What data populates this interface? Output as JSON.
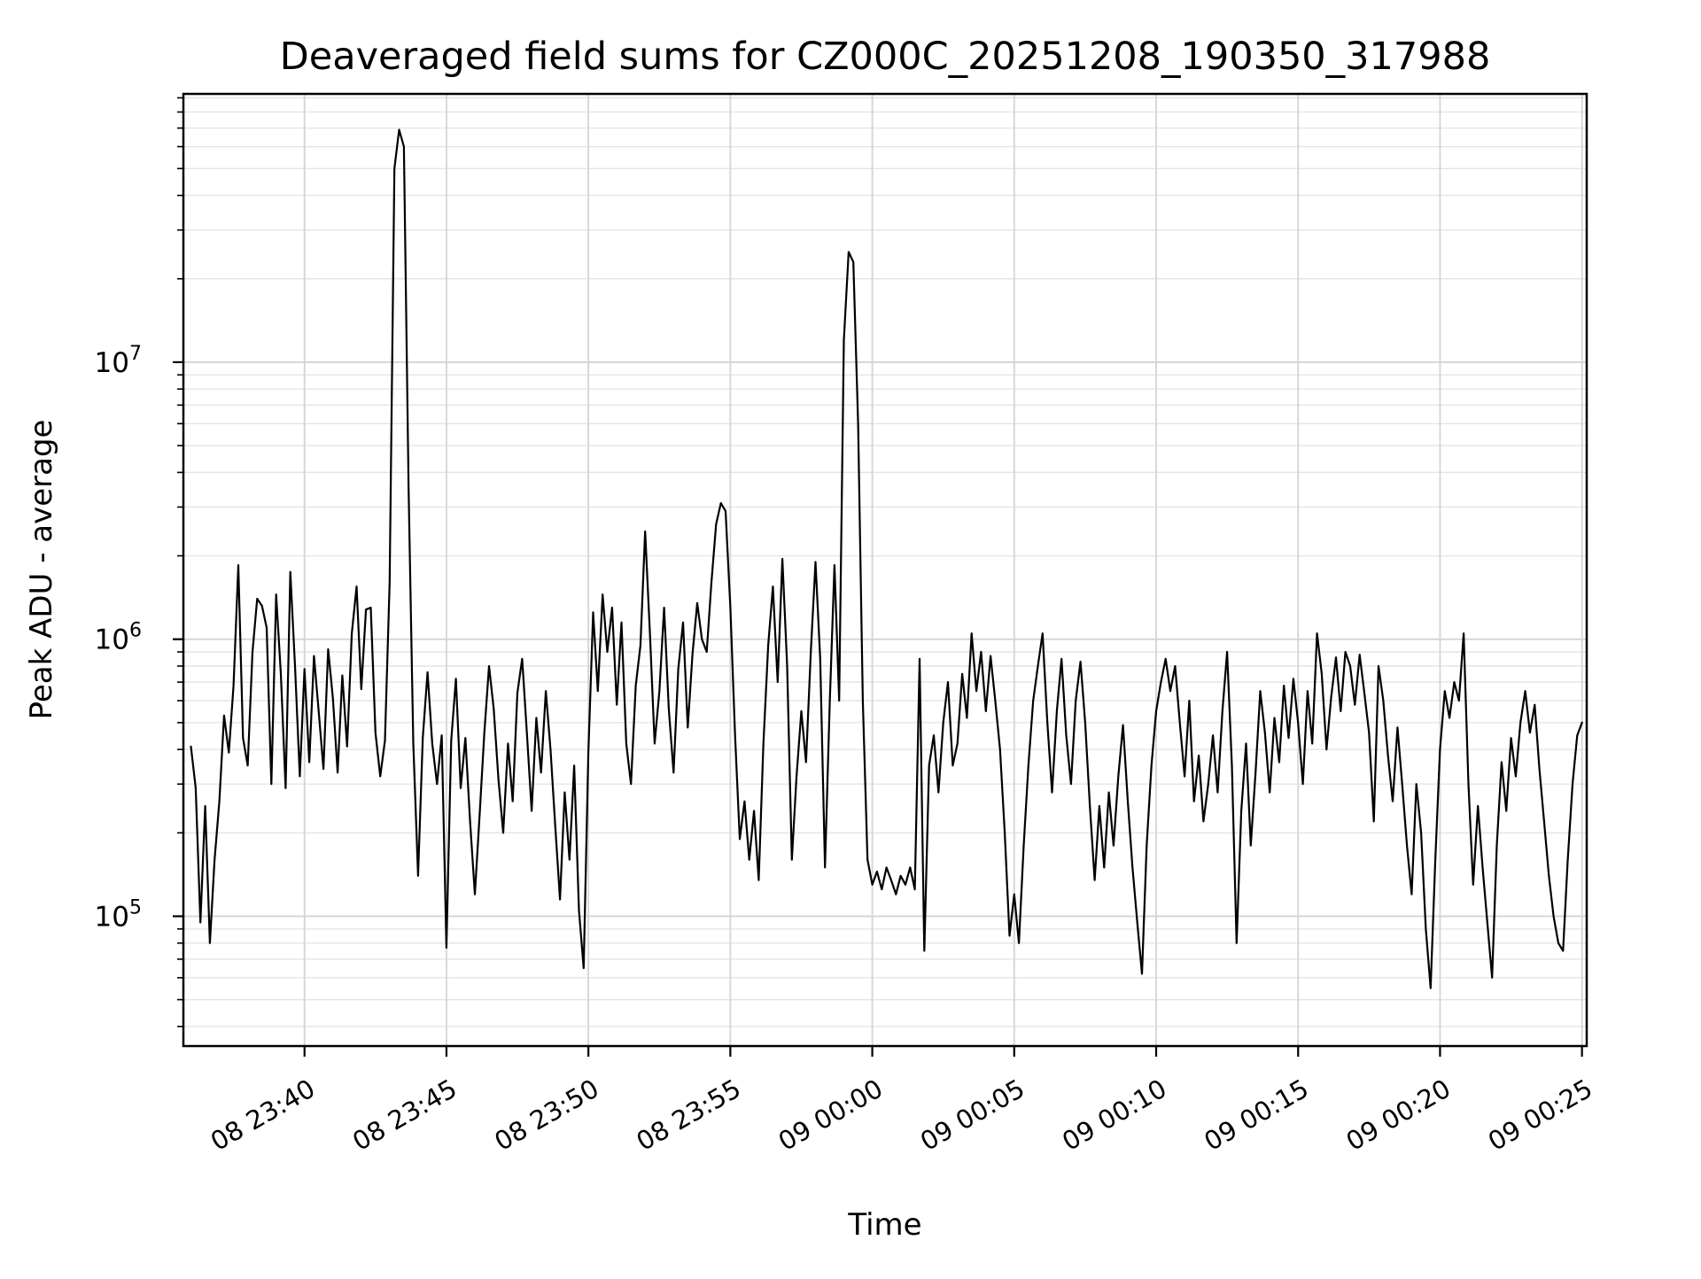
{
  "chart_data": {
    "type": "line",
    "title": "Deaveraged field sums for CZ000C_20251208_190350_317988",
    "xlabel": "Time",
    "ylabel": "Peak ADU - average",
    "y_scale": "log",
    "grid": true,
    "legend": "none",
    "ylim": [
      34000,
      93000000
    ],
    "xlim_seconds": [
      -16,
      2950
    ],
    "x_ticks": [
      {
        "t": 240,
        "label": "08 23:40"
      },
      {
        "t": 540,
        "label": "08 23:45"
      },
      {
        "t": 840,
        "label": "08 23:50"
      },
      {
        "t": 1140,
        "label": "08 23:55"
      },
      {
        "t": 1440,
        "label": "09 00:00"
      },
      {
        "t": 1740,
        "label": "09 00:05"
      },
      {
        "t": 2040,
        "label": "09 00:10"
      },
      {
        "t": 2340,
        "label": "09 00:15"
      },
      {
        "t": 2640,
        "label": "09 00:20"
      },
      {
        "t": 2940,
        "label": "09 00:25"
      }
    ],
    "y_ticks": [
      {
        "value": 10000000,
        "mantissa": "10",
        "exponent": "7"
      },
      {
        "value": 1000000,
        "mantissa": "10",
        "exponent": "6"
      },
      {
        "value": 100000,
        "mantissa": "10",
        "exponent": "5"
      }
    ],
    "series": [
      {
        "name": "deaveraged field sums",
        "color": "#000000",
        "start_time": "2025-12-08 23:36:00",
        "interval_seconds": 10,
        "values": [
          410000.0,
          290000.0,
          95000.0,
          250000.0,
          80000.0,
          160000.0,
          260000.0,
          530000.0,
          390000.0,
          680000.0,
          1850000.0,
          440000.0,
          350000.0,
          900000.0,
          1400000.0,
          1320000.0,
          1100000.0,
          300000.0,
          1450000.0,
          750000.0,
          290000.0,
          1750000.0,
          800000.0,
          320000.0,
          780000.0,
          360000.0,
          870000.0,
          550000.0,
          340000.0,
          920000.0,
          610000.0,
          330000.0,
          740000.0,
          410000.0,
          1050000.0,
          1550000.0,
          660000.0,
          1280000.0,
          1300000.0,
          460000.0,
          320000.0,
          430000.0,
          1600000.0,
          50000000.0,
          69000000.0,
          60000000.0,
          3500000.0,
          420000.0,
          140000.0,
          440000.0,
          760000.0,
          420000.0,
          300000.0,
          450000.0,
          77000.0,
          430000.0,
          720000.0,
          290000.0,
          440000.0,
          220000.0,
          120000.0,
          230000.0,
          460000.0,
          800000.0,
          560000.0,
          310000.0,
          200000.0,
          420000.0,
          260000.0,
          640000.0,
          850000.0,
          460000.0,
          240000.0,
          520000.0,
          330000.0,
          650000.0,
          400000.0,
          210000.0,
          115000.0,
          280000.0,
          160000.0,
          350000.0,
          105000.0,
          65000.0,
          390000.0,
          1250000.0,
          650000.0,
          1450000.0,
          900000.0,
          1300000.0,
          580000.0,
          1150000.0,
          420000.0,
          300000.0,
          680000.0,
          950000.0,
          2450000.0,
          1050000.0,
          420000.0,
          650000.0,
          1300000.0,
          560000.0,
          330000.0,
          780000.0,
          1150000.0,
          480000.0,
          880000.0,
          1350000.0,
          1000000.0,
          900000.0,
          1600000.0,
          2600000.0,
          3100000.0,
          2900000.0,
          1300000.0,
          450000.0,
          190000.0,
          260000.0,
          160000.0,
          240000.0,
          135000.0,
          420000.0,
          950000.0,
          1550000.0,
          700000.0,
          1950000.0,
          800000.0,
          160000.0,
          320000.0,
          550000.0,
          360000.0,
          900000.0,
          1900000.0,
          850000.0,
          150000.0,
          580000.0,
          1850000.0,
          600000.0,
          12000000.0,
          25000000.0,
          23000000.0,
          6000000.0,
          600000.0,
          160000.0,
          130000.0,
          145000.0,
          125000.0,
          150000.0,
          135000.0,
          120000.0,
          140000.0,
          130000.0,
          150000.0,
          125000.0,
          850000.0,
          75000.0,
          350000.0,
          450000.0,
          280000.0,
          500000.0,
          700000.0,
          350000.0,
          420000.0,
          750000.0,
          520000.0,
          1050000.0,
          650000.0,
          900000.0,
          550000.0,
          870000.0,
          600000.0,
          400000.0,
          200000.0,
          85000.0,
          120000.0,
          80000.0,
          180000.0,
          350000.0,
          600000.0,
          800000.0,
          1050000.0,
          500000.0,
          280000.0,
          550000.0,
          850000.0,
          450000.0,
          300000.0,
          600000.0,
          830000.0,
          500000.0,
          250000.0,
          135000.0,
          250000.0,
          150000.0,
          280000.0,
          180000.0,
          320000.0,
          490000.0,
          260000.0,
          150000.0,
          95000.0,
          62000.0,
          180000.0,
          350000.0,
          550000.0,
          700000.0,
          850000.0,
          650000.0,
          800000.0,
          500000.0,
          320000.0,
          600000.0,
          260000.0,
          380000.0,
          220000.0,
          300000.0,
          450000.0,
          280000.0,
          550000.0,
          900000.0,
          350000.0,
          80000.0,
          240000.0,
          420000.0,
          180000.0,
          330000.0,
          650000.0,
          460000.0,
          280000.0,
          520000.0,
          360000.0,
          680000.0,
          440000.0,
          720000.0,
          500000.0,
          300000.0,
          650000.0,
          420000.0,
          1050000.0,
          750000.0,
          400000.0,
          620000.0,
          860000.0,
          550000.0,
          900000.0,
          800000.0,
          580000.0,
          880000.0,
          640000.0,
          460000.0,
          220000.0,
          800000.0,
          600000.0,
          380000.0,
          260000.0,
          480000.0,
          300000.0,
          180000.0,
          120000.0,
          300000.0,
          200000.0,
          90000.0,
          55000.0,
          160000.0,
          400000.0,
          650000.0,
          520000.0,
          700000.0,
          600000.0,
          1050000.0,
          300000.0,
          130000.0,
          250000.0,
          150000.0,
          95000.0,
          60000.0,
          180000.0,
          360000.0,
          240000.0,
          440000.0,
          320000.0,
          500000.0,
          650000.0,
          460000.0,
          580000.0,
          340000.0,
          220000.0,
          140000.0,
          100000.0,
          80000.0,
          75000.0,
          160000.0,
          300000.0,
          450000.0,
          500000.0
        ]
      }
    ],
    "colors": {
      "line": "#000000",
      "frame": "#000000",
      "grid_major": "#d4d4d4",
      "grid_minor": "#e4e4e4",
      "background": "#ffffff"
    }
  }
}
